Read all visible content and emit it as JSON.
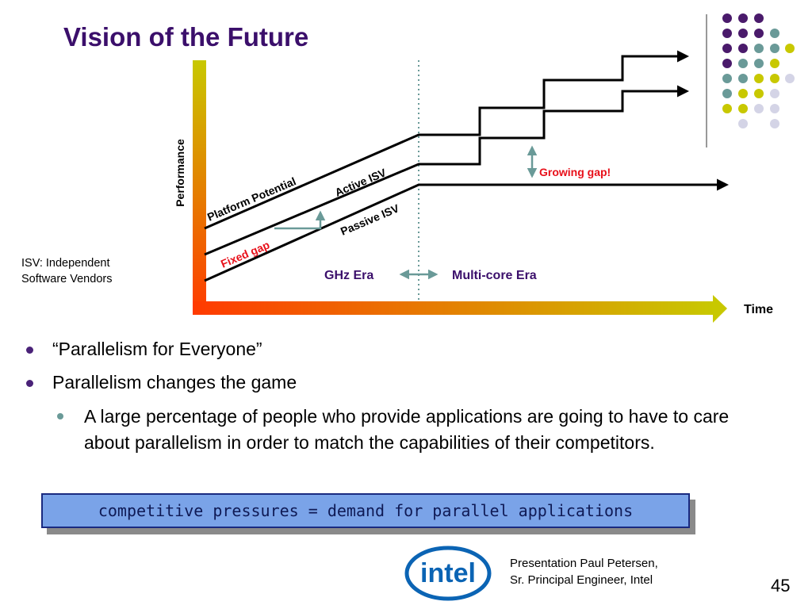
{
  "title": "Vision of the Future",
  "diagram": {
    "y_label": "Performance",
    "x_label": "Time",
    "lines": {
      "platform": "Platform Potential",
      "active": "Active ISV",
      "passive": "Passive ISV"
    },
    "fixed_gap": "Fixed gap",
    "growing_gap": "Growing gap!",
    "ghz_era": "GHz Era",
    "multicore_era": "Multi-core Era",
    "colors": {
      "title": "#3b0f6b",
      "gap_label": "#e8101a",
      "era_label": "#3b0f6b",
      "axis_yellow": "#c8c800",
      "axis_orange": "#ff3a00",
      "gap_arrow": "#6a9a98",
      "divider": "#6a9a98"
    }
  },
  "isv_note": [
    "ISV: Independent",
    "Software Vendors"
  ],
  "bullets": {
    "items": [
      "“Parallelism for Everyone”",
      "Parallelism changes the game"
    ],
    "sub": "A large percentage of people who provide applications are going to have to care about parallelism in order to match the capabilities of their competitors."
  },
  "callout": "competitive pressures = demand for parallel applications",
  "logo_text": "intel",
  "presenter": [
    "Presentation Paul Petersen,",
    "Sr. Principal Engineer, Intel"
  ],
  "page_number": "45"
}
